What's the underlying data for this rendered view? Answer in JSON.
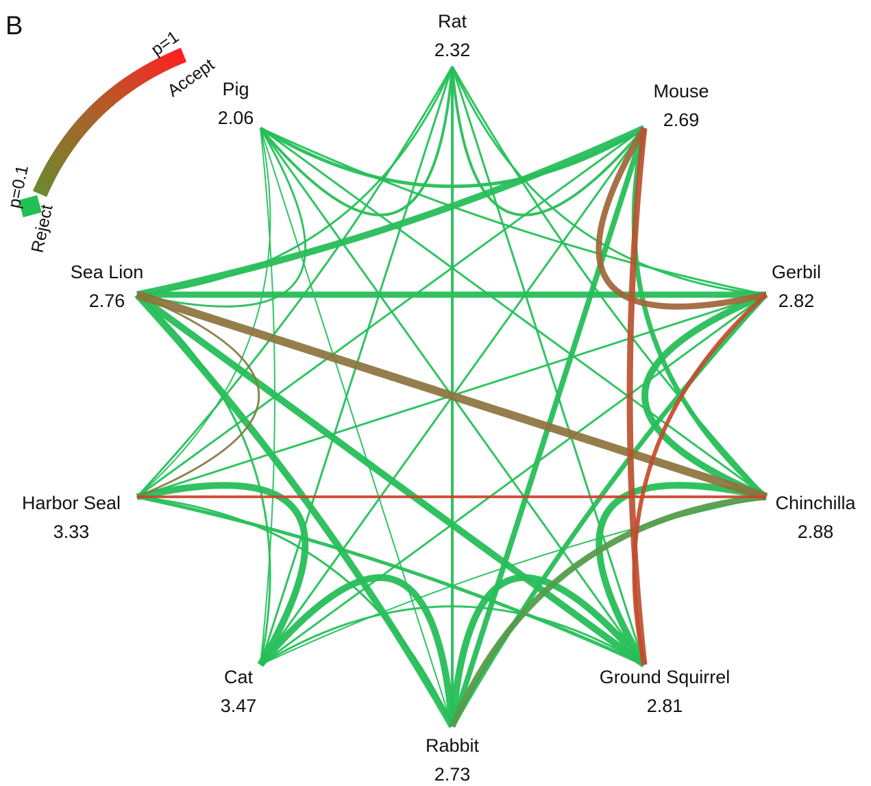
{
  "panel_label": "B",
  "colors": {
    "accept": "#ff2a2a",
    "reject": "#1ec55a",
    "text": "#111111"
  },
  "legend": {
    "top_label": "p=1",
    "top_caption": "Accept",
    "bottom_label": "p=0.1",
    "bottom_caption": "Reject"
  },
  "nodes": [
    {
      "id": "rat",
      "name": "Rat",
      "value": "2.32"
    },
    {
      "id": "mouse",
      "name": "Mouse",
      "value": "2.69"
    },
    {
      "id": "gerbil",
      "name": "Gerbil",
      "value": "2.82"
    },
    {
      "id": "chinchilla",
      "name": "Chinchilla",
      "value": "2.88"
    },
    {
      "id": "squirrel",
      "name": "Ground Squirrel",
      "value": "2.81"
    },
    {
      "id": "rabbit",
      "name": "Rabbit",
      "value": "2.73"
    },
    {
      "id": "cat",
      "name": "Cat",
      "value": "3.47"
    },
    {
      "id": "harborseal",
      "name": "Harbor Seal",
      "value": "3.33"
    },
    {
      "id": "sealion",
      "name": "Sea Lion",
      "value": "2.76"
    },
    {
      "id": "pig",
      "name": "Pig",
      "value": "2.06"
    }
  ],
  "links": [
    {
      "a": "rat",
      "b": "mouse",
      "p": 0.05,
      "w": 4
    },
    {
      "a": "rat",
      "b": "gerbil",
      "p": 0.03,
      "w": 3
    },
    {
      "a": "rat",
      "b": "chinchilla",
      "p": 0.03,
      "w": 3
    },
    {
      "a": "rat",
      "b": "squirrel",
      "p": 0.03,
      "w": 3
    },
    {
      "a": "rat",
      "b": "rabbit",
      "p": 0.05,
      "w": 4
    },
    {
      "a": "rat",
      "b": "cat",
      "p": 0.03,
      "w": 3
    },
    {
      "a": "rat",
      "b": "harborseal",
      "p": 0.03,
      "w": 3
    },
    {
      "a": "rat",
      "b": "sealion",
      "p": 0.03,
      "w": 3
    },
    {
      "a": "rat",
      "b": "pig",
      "p": 0.05,
      "w": 4
    },
    {
      "a": "mouse",
      "b": "gerbil",
      "p": 0.7,
      "w": 9
    },
    {
      "a": "mouse",
      "b": "chinchilla",
      "p": 0.05,
      "w": 7
    },
    {
      "a": "mouse",
      "b": "squirrel",
      "p": 0.85,
      "w": 9
    },
    {
      "a": "mouse",
      "b": "rabbit",
      "p": 0.05,
      "w": 8
    },
    {
      "a": "mouse",
      "b": "cat",
      "p": 0.03,
      "w": 3
    },
    {
      "a": "mouse",
      "b": "harborseal",
      "p": 0.03,
      "w": 3
    },
    {
      "a": "mouse",
      "b": "sealion",
      "p": 0.05,
      "w": 10
    },
    {
      "a": "mouse",
      "b": "pig",
      "p": 0.05,
      "w": 5
    },
    {
      "a": "gerbil",
      "b": "chinchilla",
      "p": 0.05,
      "w": 10
    },
    {
      "a": "gerbil",
      "b": "squirrel",
      "p": 0.9,
      "w": 6
    },
    {
      "a": "gerbil",
      "b": "rabbit",
      "p": 0.05,
      "w": 7
    },
    {
      "a": "gerbil",
      "b": "cat",
      "p": 0.03,
      "w": 3
    },
    {
      "a": "gerbil",
      "b": "harborseal",
      "p": 0.03,
      "w": 3
    },
    {
      "a": "gerbil",
      "b": "sealion",
      "p": 0.05,
      "w": 9
    },
    {
      "a": "gerbil",
      "b": "pig",
      "p": 0.03,
      "w": 3
    },
    {
      "a": "chinchilla",
      "b": "squirrel",
      "p": 0.05,
      "w": 10
    },
    {
      "a": "chinchilla",
      "b": "rabbit",
      "p": 0.3,
      "w": 9
    },
    {
      "a": "chinchilla",
      "b": "cat",
      "p": 0.03,
      "w": 2
    },
    {
      "a": "chinchilla",
      "b": "harborseal",
      "p": 0.95,
      "w": 4
    },
    {
      "a": "chinchilla",
      "b": "sealion",
      "p": 0.6,
      "w": 12
    },
    {
      "a": "chinchilla",
      "b": "pig",
      "p": 0.03,
      "w": 3
    },
    {
      "a": "squirrel",
      "b": "rabbit",
      "p": 0.05,
      "w": 10
    },
    {
      "a": "squirrel",
      "b": "cat",
      "p": 0.03,
      "w": 3
    },
    {
      "a": "squirrel",
      "b": "harborseal",
      "p": 0.05,
      "w": 5
    },
    {
      "a": "squirrel",
      "b": "sealion",
      "p": 0.05,
      "w": 10
    },
    {
      "a": "squirrel",
      "b": "pig",
      "p": 0.03,
      "w": 3
    },
    {
      "a": "rabbit",
      "b": "cat",
      "p": 0.05,
      "w": 10
    },
    {
      "a": "rabbit",
      "b": "harborseal",
      "p": 0.05,
      "w": 3
    },
    {
      "a": "rabbit",
      "b": "sealion",
      "p": 0.05,
      "w": 10
    },
    {
      "a": "rabbit",
      "b": "pig",
      "p": 0.03,
      "w": 2
    },
    {
      "a": "cat",
      "b": "harborseal",
      "p": 0.05,
      "w": 10
    },
    {
      "a": "cat",
      "b": "sealion",
      "p": 0.03,
      "w": 3
    },
    {
      "a": "cat",
      "b": "pig",
      "p": 0.03,
      "w": 2
    },
    {
      "a": "harborseal",
      "b": "sealion",
      "p": 0.55,
      "w": 3
    },
    {
      "a": "harborseal",
      "b": "pig",
      "p": 0.03,
      "w": 2
    },
    {
      "a": "sealion",
      "b": "pig",
      "p": 0.05,
      "w": 3
    }
  ]
}
